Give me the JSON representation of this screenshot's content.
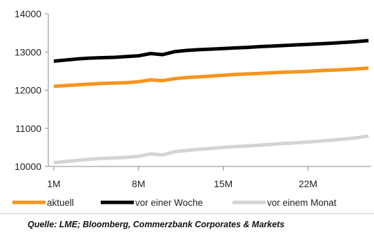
{
  "chart_data": {
    "type": "line",
    "title": "",
    "xlabel": "",
    "ylabel": "",
    "ylim": [
      10000,
      14000
    ],
    "y_ticks": [
      "10000",
      "11000",
      "12000",
      "13000",
      "14000"
    ],
    "x_ticks": [
      "1M",
      "8M",
      "15M",
      "22M"
    ],
    "x": [
      1,
      2,
      3,
      4,
      5,
      6,
      7,
      8,
      9,
      10,
      11,
      12,
      13,
      14,
      15,
      16,
      17,
      18,
      19,
      20,
      21,
      22,
      23,
      24,
      25,
      26,
      27
    ],
    "grid": false,
    "legend_position": "bottom",
    "series": [
      {
        "name": "aktuell",
        "color": "#f7941d",
        "values": [
          12100,
          12120,
          12140,
          12160,
          12175,
          12185,
          12195,
          12220,
          12270,
          12250,
          12300,
          12330,
          12350,
          12370,
          12390,
          12410,
          12425,
          12440,
          12455,
          12470,
          12480,
          12495,
          12510,
          12525,
          12540,
          12555,
          12580
        ]
      },
      {
        "name": "vor einer Woche",
        "color": "#000000",
        "values": [
          12760,
          12790,
          12820,
          12840,
          12850,
          12860,
          12880,
          12900,
          12960,
          12930,
          13010,
          13040,
          13060,
          13075,
          13090,
          13105,
          13120,
          13140,
          13155,
          13170,
          13185,
          13200,
          13215,
          13230,
          13250,
          13270,
          13300
        ]
      },
      {
        "name": "vor einem Monat",
        "color": "#d4d4d4",
        "values": [
          10100,
          10130,
          10160,
          10190,
          10210,
          10225,
          10240,
          10265,
          10330,
          10300,
          10390,
          10420,
          10450,
          10475,
          10500,
          10520,
          10540,
          10560,
          10580,
          10600,
          10620,
          10640,
          10665,
          10690,
          10720,
          10750,
          10800
        ]
      }
    ]
  },
  "source": "Quelle: LME; Bloomberg, Commerzbank Corporates & Markets"
}
